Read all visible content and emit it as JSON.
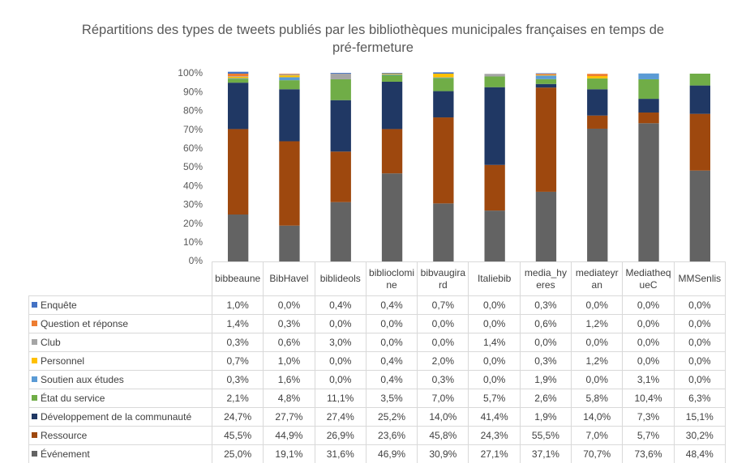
{
  "chart_data": {
    "type": "stacked_bar_100",
    "title": "Répartitions des types de tweets publiés par les bibliothèques municipales françaises en temps de pré-fermeture",
    "categories": [
      "bibbeaune",
      "BibHavel",
      "biblideols",
      "biblioclomine",
      "bibvaugirard",
      "Italiebib",
      "media_hyeres",
      "mediateyran",
      "MediathequeC",
      "MMSenlis"
    ],
    "ylim": [
      0,
      100
    ],
    "yticks": [
      {
        "value": 0,
        "label": "0%"
      },
      {
        "value": 10,
        "label": "10%"
      },
      {
        "value": 20,
        "label": "20%"
      },
      {
        "value": 30,
        "label": "30%"
      },
      {
        "value": 40,
        "label": "40%"
      },
      {
        "value": 50,
        "label": "50%"
      },
      {
        "value": 60,
        "label": "60%"
      },
      {
        "value": 70,
        "label": "70%"
      },
      {
        "value": 80,
        "label": "80%"
      },
      {
        "value": 90,
        "label": "90%"
      },
      {
        "value": 100,
        "label": "100%"
      }
    ],
    "series": [
      {
        "name": "Enquête",
        "color": "#4472c4",
        "values": [
          1.0,
          0.0,
          0.4,
          0.4,
          0.7,
          0.0,
          0.3,
          0.0,
          0.0,
          0.0
        ],
        "value_labels": [
          "1,0%",
          "0,0%",
          "0,4%",
          "0,4%",
          "0,7%",
          "0,0%",
          "0,3%",
          "0,0%",
          "0,0%",
          "0,0%"
        ]
      },
      {
        "name": "Question et réponse",
        "color": "#ed7d31",
        "values": [
          1.4,
          0.3,
          0.0,
          0.0,
          0.0,
          0.0,
          0.6,
          1.2,
          0.0,
          0.0
        ],
        "value_labels": [
          "1,4%",
          "0,3%",
          "0,0%",
          "0,0%",
          "0,0%",
          "0,0%",
          "0,6%",
          "1,2%",
          "0,0%",
          "0,0%"
        ]
      },
      {
        "name": "Club",
        "color": "#a5a5a5",
        "values": [
          0.3,
          0.6,
          3.0,
          0.0,
          0.0,
          1.4,
          0.0,
          0.0,
          0.0,
          0.0
        ],
        "value_labels": [
          "0,3%",
          "0,6%",
          "3,0%",
          "0,0%",
          "0,0%",
          "1,4%",
          "0,0%",
          "0,0%",
          "0,0%",
          "0,0%"
        ]
      },
      {
        "name": "Personnel",
        "color": "#ffc000",
        "values": [
          0.7,
          1.0,
          0.0,
          0.4,
          2.0,
          0.0,
          0.3,
          1.2,
          0.0,
          0.0
        ],
        "value_labels": [
          "0,7%",
          "1,0%",
          "0,0%",
          "0,4%",
          "2,0%",
          "0,0%",
          "0,3%",
          "1,2%",
          "0,0%",
          "0,0%"
        ]
      },
      {
        "name": "Soutien aux études",
        "color": "#5b9bd5",
        "values": [
          0.3,
          1.6,
          0.0,
          0.4,
          0.3,
          0.0,
          1.9,
          0.0,
          3.1,
          0.0
        ],
        "value_labels": [
          "0,3%",
          "1,6%",
          "0,0%",
          "0,4%",
          "0,3%",
          "0,0%",
          "1,9%",
          "0,0%",
          "3,1%",
          "0,0%"
        ]
      },
      {
        "name": "État du service",
        "color": "#70ad47",
        "values": [
          2.1,
          4.8,
          11.1,
          3.5,
          7.0,
          5.7,
          2.6,
          5.8,
          10.4,
          6.3
        ],
        "value_labels": [
          "2,1%",
          "4,8%",
          "11,1%",
          "3,5%",
          "7,0%",
          "5,7%",
          "2,6%",
          "5,8%",
          "10,4%",
          "6,3%"
        ]
      },
      {
        "name": "Développement de la communauté",
        "color": "#203864",
        "values": [
          24.7,
          27.7,
          27.4,
          25.2,
          14.0,
          41.4,
          1.9,
          14.0,
          7.3,
          15.1
        ],
        "value_labels": [
          "24,7%",
          "27,7%",
          "27,4%",
          "25,2%",
          "14,0%",
          "41,4%",
          "1,9%",
          "14,0%",
          "7,3%",
          "15,1%"
        ]
      },
      {
        "name": "Ressource",
        "color": "#9e480e",
        "values": [
          45.5,
          44.9,
          26.9,
          23.6,
          45.8,
          24.3,
          55.5,
          7.0,
          5.7,
          30.2
        ],
        "value_labels": [
          "45,5%",
          "44,9%",
          "26,9%",
          "23,6%",
          "45,8%",
          "24,3%",
          "55,5%",
          "7,0%",
          "5,7%",
          "30,2%"
        ]
      },
      {
        "name": "Événement",
        "color": "#636363",
        "values": [
          25.0,
          19.1,
          31.6,
          46.9,
          30.9,
          27.1,
          37.1,
          70.7,
          73.6,
          48.4
        ],
        "value_labels": [
          "25,0%",
          "19,1%",
          "31,6%",
          "46,9%",
          "30,9%",
          "27,1%",
          "37,1%",
          "70,7%",
          "73,6%",
          "48,4%"
        ]
      }
    ]
  }
}
